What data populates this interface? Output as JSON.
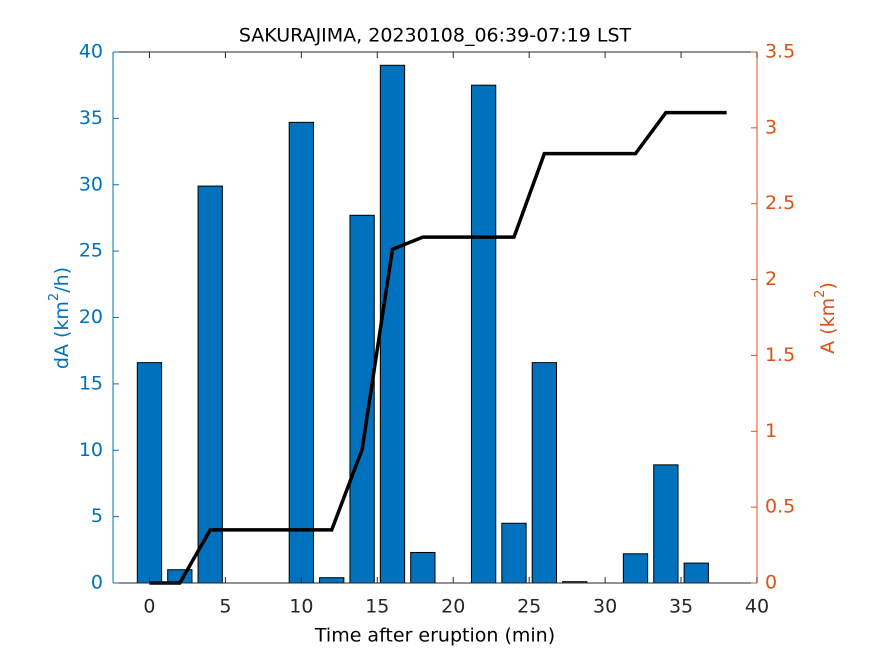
{
  "chart_data": {
    "type": "bar_line",
    "title": "SAKURAJIMA, 20230108_06:39-07:19 LST",
    "x_label": "Time after eruption (min)",
    "y_label": [
      "dA (km",
      "2",
      "/h)"
    ],
    "y2_label": [
      "A (km",
      "2",
      ")"
    ],
    "xlim": [
      -2.4,
      40
    ],
    "xticks": [
      0,
      5,
      10,
      15,
      20,
      25,
      30,
      35,
      40
    ],
    "ylim": [
      0,
      40
    ],
    "yticks": [
      0,
      5,
      10,
      15,
      20,
      25,
      30,
      35,
      40
    ],
    "y2lim": [
      0,
      3.5
    ],
    "y2ticks": [
      0,
      0.5,
      1,
      1.5,
      2,
      2.5,
      3,
      3.5
    ],
    "bar_width": 1.6,
    "series": [
      {
        "type": "bar",
        "color": "#0072bd",
        "x": [
          0,
          2,
          4,
          6,
          8,
          10,
          12,
          14,
          16,
          18,
          20,
          22,
          24,
          26,
          28,
          30,
          32,
          34,
          36
        ],
        "values": [
          16.6,
          1.0,
          29.9,
          0,
          0,
          34.7,
          0.4,
          27.7,
          39.0,
          2.3,
          0,
          37.5,
          4.5,
          16.6,
          0.1,
          0,
          2.2,
          8.9,
          1.5
        ]
      },
      {
        "type": "line",
        "color": "#000000",
        "axis": "y2",
        "x": [
          0,
          2,
          4,
          6,
          8,
          10,
          12,
          14,
          16,
          18,
          20,
          22,
          24,
          26,
          28,
          30,
          32,
          34,
          36,
          38
        ],
        "values": [
          0,
          0,
          0.35,
          0.35,
          0.35,
          0.35,
          0.35,
          0.88,
          2.2,
          2.28,
          2.28,
          2.28,
          2.28,
          2.83,
          2.83,
          2.83,
          2.83,
          3.1,
          3.1,
          3.1
        ]
      }
    ],
    "y_color": "#0072bd",
    "y2_color": "#d95319"
  }
}
